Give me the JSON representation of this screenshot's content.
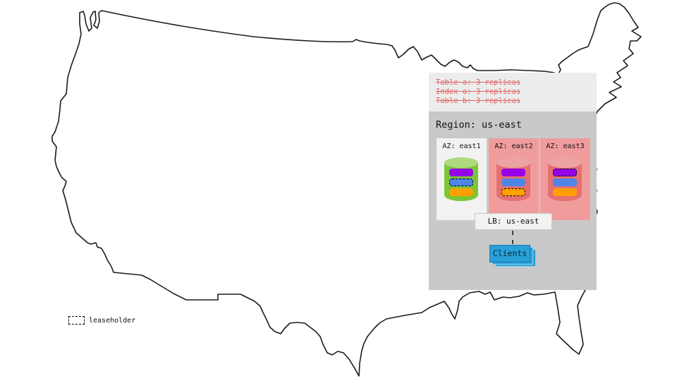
{
  "overlay": {
    "tables": [
      "Table a: 3 replicas",
      "Index a: 3 replicas",
      "Table b: 3 replicas"
    ]
  },
  "region": {
    "title": "Region: us-east",
    "azs": [
      {
        "label": "AZ: east1",
        "state": "up",
        "cylinder": "green",
        "bars": [
          {
            "color": "purple",
            "leaseholder": false
          },
          {
            "color": "blue",
            "leaseholder": true
          },
          {
            "color": "orange",
            "leaseholder": false
          }
        ]
      },
      {
        "label": "AZ: east2",
        "state": "down",
        "cylinder": "red",
        "bars": [
          {
            "color": "purple",
            "leaseholder": false
          },
          {
            "color": "blue",
            "leaseholder": false
          },
          {
            "color": "orange",
            "leaseholder": true
          }
        ]
      },
      {
        "label": "AZ: east3",
        "state": "down",
        "cylinder": "red",
        "bars": [
          {
            "color": "purple",
            "leaseholder": true
          },
          {
            "color": "blue",
            "leaseholder": false
          },
          {
            "color": "orange",
            "leaseholder": false
          }
        ]
      }
    ],
    "lb_label": "LB: us-east",
    "clients_label": "Clients"
  },
  "legend": {
    "leaseholder_label": "leaseholder"
  },
  "colors": {
    "overlay_bg": "#ececec",
    "region_bg": "#c9c9c9",
    "az_up_bg": "#f2f2f2",
    "az_down_bg": "#f09c9c",
    "strike_red": "#e06565",
    "cyl_green": "#7cc636",
    "cyl_green_top": "#b0da7e",
    "cyl_red": "#e57070",
    "cyl_red_top": "#eda3a3",
    "bar_purple": "#9502e8",
    "bar_blue": "#4e86e8",
    "bar_orange": "#ffa000",
    "clients_blue": "#2aa0d8",
    "clients_border": "#1b7ab0",
    "map_stroke": "#1b1b1b"
  }
}
